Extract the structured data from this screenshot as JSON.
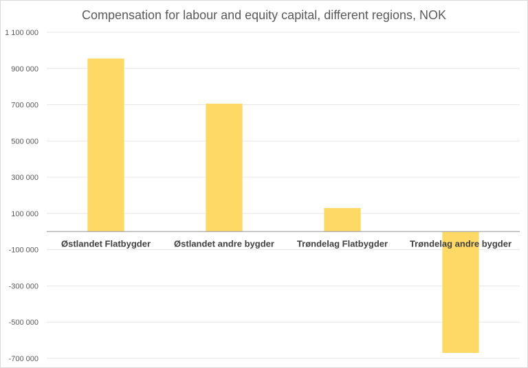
{
  "chart_data": {
    "type": "bar",
    "title": "Compensation for labour and equity capital, different regions,  NOK",
    "xlabel": "",
    "ylabel": "",
    "categories": [
      "Østlandet Flatbygder",
      "Østlandet andre bygder",
      "Trøndelag Flatbygder",
      "Trøndelag andre bygder"
    ],
    "values": [
      955000,
      706000,
      130000,
      -670000
    ],
    "ylim": [
      -700000,
      1100000
    ],
    "yticks": [
      1100000,
      900000,
      700000,
      500000,
      300000,
      100000,
      -100000,
      -300000,
      -500000,
      -700000
    ],
    "ytick_labels": [
      "1 100 000",
      "900 000",
      "700 000",
      "500 000",
      "300 000",
      "100 000",
      "-100 000",
      "-300 000",
      "-500 000",
      "-700 000"
    ],
    "grid": true,
    "legend": "none",
    "bar_color": "#ffd966"
  }
}
